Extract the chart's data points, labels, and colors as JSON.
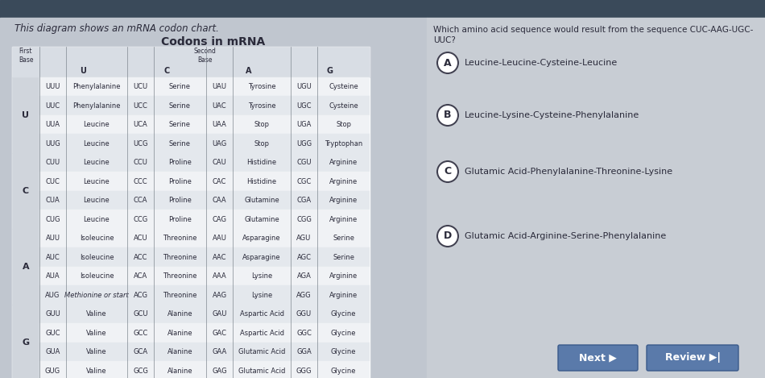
{
  "title_left": "This diagram shows an mRNA codon chart.",
  "table_title": "Codons in mRNA",
  "question_line1": "Which amino acid sequence would result from the sequence CUC-AAG-UGC-",
  "question_line2": "UUC?",
  "choices": [
    {
      "letter": "A",
      "text": "Leucine-Leucine-Cysteine-Leucine"
    },
    {
      "letter": "B",
      "text": "Leucine-Lysine-Cysteine-Phenylalanine"
    },
    {
      "letter": "C",
      "text": "Glutamic Acid-Phenylalanine-Threonine-Lysine"
    },
    {
      "letter": "D",
      "text": "Glutamic Acid-Arginine-Serine-Phenylalanine"
    }
  ],
  "bg_left": "#c0c6cf",
  "bg_right": "#c8cdd4",
  "toolbar_color": "#3a4a5a",
  "table_outer_bg": "#ffffff",
  "cell_light": "#f0f2f5",
  "cell_dark": "#e4e8ed",
  "header_bg": "#d8dde4",
  "first_base_bg": "#d0d5dc",
  "divider": "#8a9aaa",
  "text_dark": "#2a2a3a",
  "text_gray": "#4a5060",
  "button_blue": "#5a7aaa",
  "rows": [
    {
      "first": "U",
      "codons": [
        [
          "UUU",
          "Phenylalanine",
          "UCU",
          "Serine",
          "UAU",
          "Tyrosine",
          "UGU",
          "Cysteine"
        ],
        [
          "UUC",
          "Phenylalanine",
          "UCC",
          "Serine",
          "UAC",
          "Tyrosine",
          "UGC",
          "Cysteine"
        ],
        [
          "UUA",
          "Leucine",
          "UCA",
          "Serine",
          "UAA",
          "Stop",
          "UGA",
          "Stop"
        ],
        [
          "UUG",
          "Leucine",
          "UCG",
          "Serine",
          "UAG",
          "Stop",
          "UGG",
          "Tryptophan"
        ]
      ]
    },
    {
      "first": "C",
      "codons": [
        [
          "CUU",
          "Leucine",
          "CCU",
          "Proline",
          "CAU",
          "Histidine",
          "CGU",
          "Arginine"
        ],
        [
          "CUC",
          "Leucine",
          "CCC",
          "Proline",
          "CAC",
          "Histidine",
          "CGC",
          "Arginine"
        ],
        [
          "CUA",
          "Leucine",
          "CCA",
          "Proline",
          "CAA",
          "Glutamine",
          "CGA",
          "Arginine"
        ],
        [
          "CUG",
          "Leucine",
          "CCG",
          "Proline",
          "CAG",
          "Glutamine",
          "CGG",
          "Arginine"
        ]
      ]
    },
    {
      "first": "A",
      "codons": [
        [
          "AUU",
          "Isoleucine",
          "ACU",
          "Threonine",
          "AAU",
          "Asparagine",
          "AGU",
          "Serine"
        ],
        [
          "AUC",
          "Isoleucine",
          "ACC",
          "Threonine",
          "AAC",
          "Asparagine",
          "AGC",
          "Serine"
        ],
        [
          "AUA",
          "Isoleucine",
          "ACA",
          "Threonine",
          "AAA",
          "Lysine",
          "AGA",
          "Arginine"
        ],
        [
          "AUG",
          "Methionine or start",
          "ACG",
          "Threonine",
          "AAG",
          "Lysine",
          "AGG",
          "Arginine"
        ]
      ]
    },
    {
      "first": "G",
      "codons": [
        [
          "GUU",
          "Valine",
          "GCU",
          "Alanine",
          "GAU",
          "Aspartic Acid",
          "GGU",
          "Glycine"
        ],
        [
          "GUC",
          "Valine",
          "GCC",
          "Alanine",
          "GAC",
          "Aspartic Acid",
          "GGC",
          "Glycine"
        ],
        [
          "GUA",
          "Valine",
          "GCA",
          "Alanine",
          "GAA",
          "Glutamic Acid",
          "GGA",
          "Glycine"
        ],
        [
          "GUG",
          "Valine",
          "GCG",
          "Alanine",
          "GAG",
          "Glutamic Acid",
          "GGG",
          "Glycine"
        ]
      ]
    }
  ]
}
